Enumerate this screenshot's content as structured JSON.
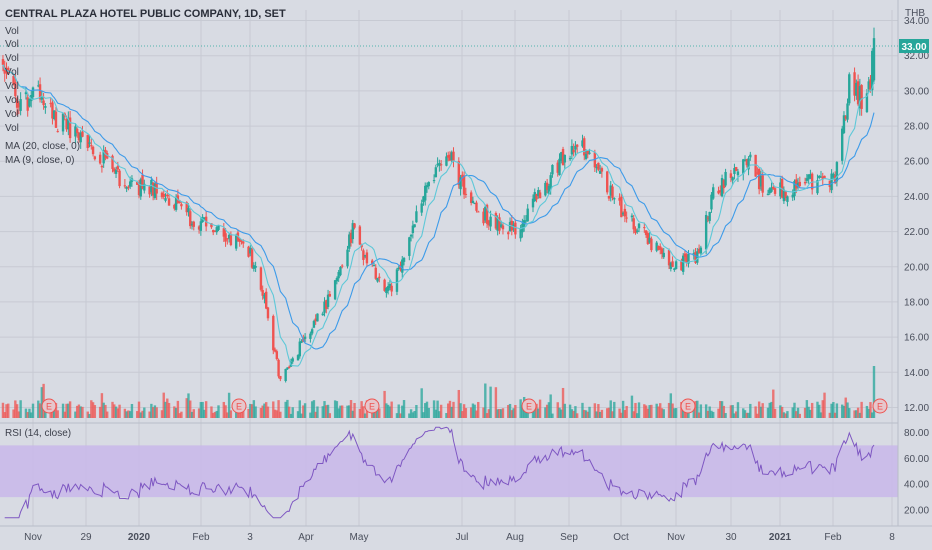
{
  "header": {
    "title": "CENTRAL PLAZA HOTEL PUBLIC COMPANY, 1D, SET",
    "currency": "THB"
  },
  "legend": {
    "vol_labels": [
      "Vol",
      "Vol",
      "Vol",
      "Vol",
      "Vol",
      "Vol",
      "Vol",
      "Vol"
    ],
    "ma1": "MA (20, close, 0)",
    "ma2": "MA (9, close, 0)"
  },
  "rsi": {
    "label": "RSI (14, close)",
    "ticks": [
      "80.00",
      "60.00",
      "40.00",
      "20.00"
    ],
    "band": [
      30,
      70
    ]
  },
  "price": {
    "last": "33.00",
    "ticks": [
      "34.00",
      "32.00",
      "30.00",
      "28.00",
      "26.00",
      "24.00",
      "22.00",
      "20.00",
      "18.00",
      "16.00",
      "14.00",
      "12.00"
    ]
  },
  "x_axis": {
    "labels": [
      "Nov",
      "29",
      "2020",
      "Feb",
      "3",
      "Apr",
      "May",
      "Jul",
      "Aug",
      "Sep",
      "Oct",
      "Nov",
      "30",
      "2021",
      "Feb",
      "8"
    ]
  },
  "earnings_marker": "E",
  "colors": {
    "up": "#26a69a",
    "down": "#ef5350",
    "ma_fast": "#5ec8d8",
    "ma_slow": "#3d9be9",
    "rsi_line": "#7e57c2",
    "rsi_band": "#c9b7ea",
    "last_price_bg": "#26a69a"
  },
  "chart_data": {
    "type": "candlestick",
    "x_labels": [
      "Nov",
      "29",
      "2020",
      "Feb",
      "3",
      "Apr",
      "May",
      "Jul",
      "Aug",
      "Sep",
      "Oct",
      "Nov",
      "30",
      "2021",
      "Feb",
      "8"
    ],
    "y_range": [
      11.4,
      34.6
    ],
    "close_anchors": [
      [
        "2019-10-15",
        31.5
      ],
      [
        "2019-10-25",
        29.0
      ],
      [
        "2019-11-05",
        30.0
      ],
      [
        "2019-11-15",
        28.3
      ],
      [
        "2019-11-29",
        27.5
      ],
      [
        "2019-12-10",
        26.2
      ],
      [
        "2019-12-25",
        24.5
      ],
      [
        "2020-01-10",
        24.6
      ],
      [
        "2020-01-25",
        23.0
      ],
      [
        "2020-02-05",
        22.5
      ],
      [
        "2020-02-20",
        21.5
      ],
      [
        "2020-03-02",
        21.0
      ],
      [
        "2020-03-10",
        18.5
      ],
      [
        "2020-03-20",
        13.5
      ],
      [
        "2020-03-31",
        15.5
      ],
      [
        "2020-04-15",
        18.0
      ],
      [
        "2020-04-30",
        22.0
      ],
      [
        "2020-05-10",
        20.0
      ],
      [
        "2020-05-20",
        18.5
      ],
      [
        "2020-06-01",
        21.5
      ],
      [
        "2020-06-12",
        25.0
      ],
      [
        "2020-06-25",
        26.0
      ],
      [
        "2020-07-05",
        23.5
      ],
      [
        "2020-07-20",
        22.5
      ],
      [
        "2020-08-01",
        22.0
      ],
      [
        "2020-08-12",
        24.0
      ],
      [
        "2020-08-25",
        26.0
      ],
      [
        "2020-09-05",
        27.0
      ],
      [
        "2020-09-18",
        25.0
      ],
      [
        "2020-10-01",
        23.0
      ],
      [
        "2020-10-15",
        21.5
      ],
      [
        "2020-10-30",
        20.0
      ],
      [
        "2020-11-10",
        20.5
      ],
      [
        "2020-11-20",
        24.0
      ],
      [
        "2020-11-30",
        25.5
      ],
      [
        "2020-12-10",
        26.2
      ],
      [
        "2020-12-20",
        24.0
      ],
      [
        "2021-01-05",
        24.5
      ],
      [
        "2021-01-20",
        25.0
      ],
      [
        "2021-01-28",
        24.8
      ],
      [
        "2021-02-05",
        30.5
      ],
      [
        "2021-02-12",
        29.5
      ],
      [
        "2021-02-17",
        30.5
      ],
      [
        "2021-02-19",
        33.0
      ]
    ],
    "ma_periods": [
      20,
      9
    ],
    "rsi_period": 14
  }
}
